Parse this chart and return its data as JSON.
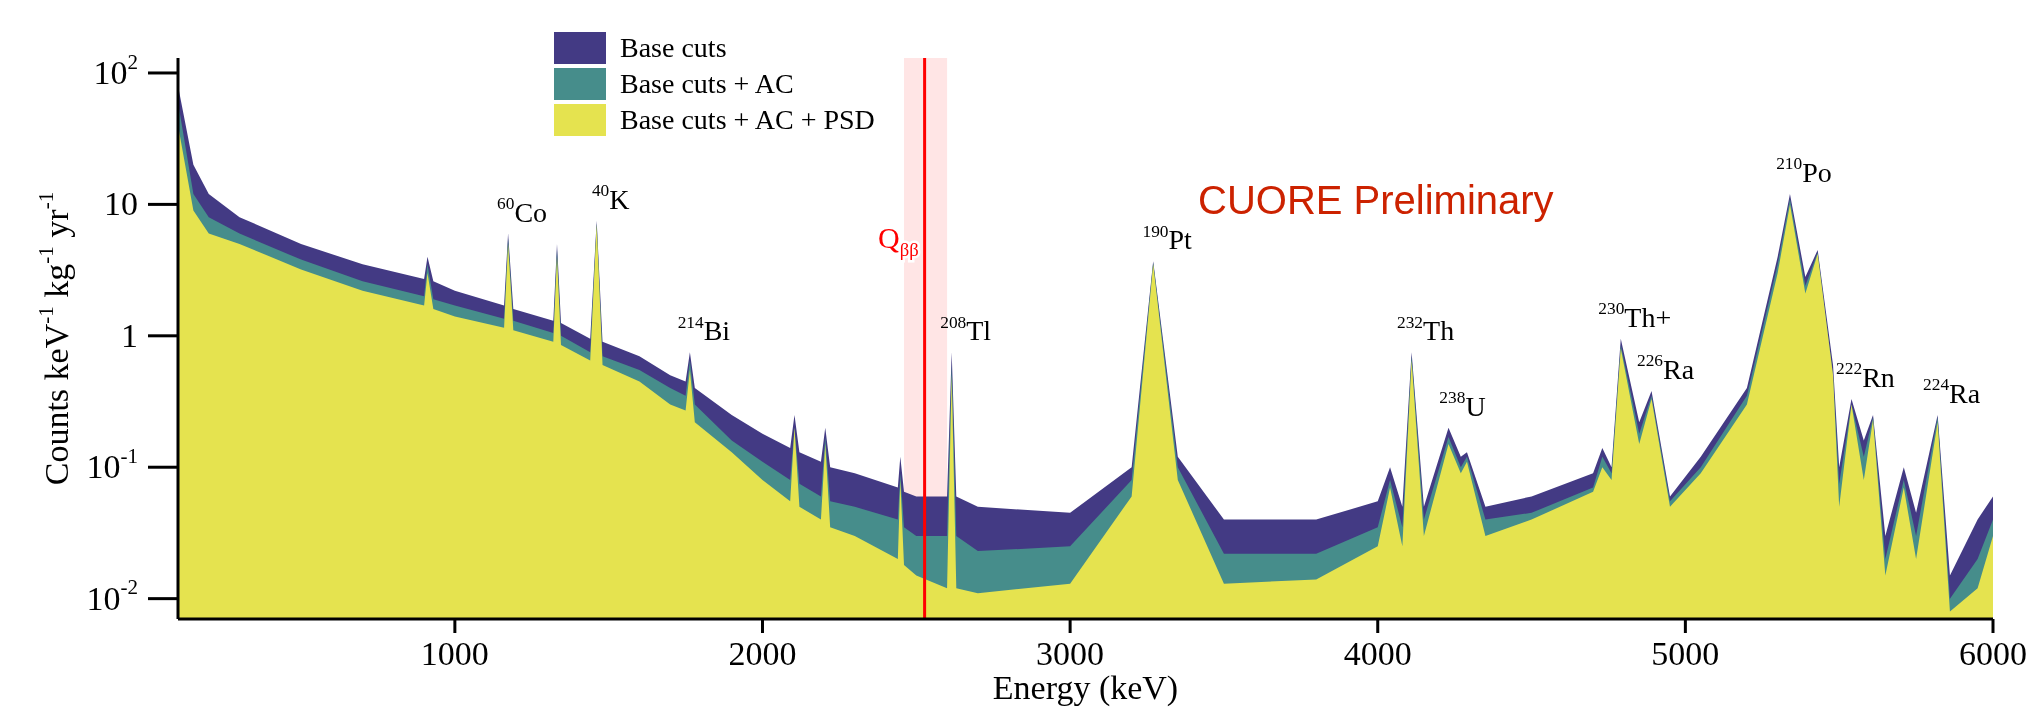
{
  "chart_data": {
    "type": "area",
    "xlabel": "Energy (keV)",
    "ylabel": "Counts keV$^{-1}$ kg$^{-1}$ yr$^{-1}$",
    "x": [
      100,
      150,
      200,
      300,
      500,
      700,
      900,
      911,
      930,
      1000,
      1160,
      1173,
      1190,
      1320,
      1332,
      1345,
      1440,
      1461,
      1480,
      1600,
      1700,
      1750,
      1764,
      1780,
      1900,
      2000,
      2090,
      2104,
      2120,
      2190,
      2204,
      2220,
      2300,
      2440,
      2448,
      2460,
      2500,
      2600,
      2615,
      2630,
      2700,
      3000,
      3200,
      3270,
      3350,
      3500,
      3800,
      4000,
      4040,
      4080,
      4110,
      4150,
      4230,
      4270,
      4290,
      4350,
      4500,
      4700,
      4730,
      4760,
      4790,
      4850,
      4890,
      4950,
      5050,
      5200,
      5300,
      5340,
      5390,
      5430,
      5480,
      5500,
      5540,
      5580,
      5610,
      5650,
      5710,
      5750,
      5820,
      5860,
      5950,
      6000
    ],
    "series": [
      {
        "name": "Base cuts",
        "color": "#433a84",
        "values": [
          80,
          20,
          12,
          8,
          5,
          3.5,
          2.7,
          4,
          2.6,
          2.2,
          1.7,
          6,
          1.6,
          1.3,
          5,
          1.25,
          0.95,
          7.5,
          0.9,
          0.7,
          0.5,
          0.45,
          0.75,
          0.4,
          0.25,
          0.18,
          0.14,
          0.25,
          0.13,
          0.11,
          0.2,
          0.1,
          0.09,
          0.07,
          0.12,
          0.065,
          0.06,
          0.06,
          0.75,
          0.06,
          0.05,
          0.045,
          0.1,
          3.7,
          0.12,
          0.04,
          0.04,
          0.055,
          0.1,
          0.05,
          0.75,
          0.05,
          0.2,
          0.12,
          0.13,
          0.05,
          0.06,
          0.09,
          0.14,
          0.1,
          0.95,
          0.22,
          0.38,
          0.06,
          0.12,
          0.4,
          4,
          12,
          2.8,
          4.5,
          0.6,
          0.1,
          0.33,
          0.16,
          0.25,
          0.03,
          0.1,
          0.045,
          0.25,
          0.015,
          0.04,
          0.06
        ]
      },
      {
        "name": "Base cuts + AC",
        "color": "#468d8b",
        "values": [
          60,
          12,
          8,
          6,
          3.8,
          2.6,
          2,
          3.5,
          1.9,
          1.7,
          1.35,
          5.5,
          1.3,
          1.05,
          4.5,
          1,
          0.75,
          7.2,
          0.7,
          0.55,
          0.4,
          0.35,
          0.65,
          0.3,
          0.16,
          0.11,
          0.08,
          0.2,
          0.075,
          0.06,
          0.17,
          0.055,
          0.05,
          0.04,
          0.09,
          0.035,
          0.03,
          0.03,
          0.6,
          0.03,
          0.023,
          0.025,
          0.08,
          3.6,
          0.1,
          0.022,
          0.022,
          0.035,
          0.08,
          0.035,
          0.7,
          0.04,
          0.17,
          0.1,
          0.12,
          0.04,
          0.045,
          0.07,
          0.12,
          0.09,
          0.85,
          0.18,
          0.35,
          0.055,
          0.1,
          0.35,
          3.5,
          11,
          2.4,
          4.3,
          0.5,
          0.075,
          0.3,
          0.12,
          0.24,
          0.02,
          0.08,
          0.03,
          0.24,
          0.01,
          0.02,
          0.04
        ]
      },
      {
        "name": "Base cuts + AC + PSD",
        "color": "#e5e34f",
        "values": [
          40,
          9,
          6,
          5,
          3.2,
          2.2,
          1.7,
          3,
          1.6,
          1.4,
          1.15,
          5,
          1.1,
          0.9,
          4,
          0.85,
          0.65,
          7,
          0.6,
          0.45,
          0.3,
          0.27,
          0.55,
          0.22,
          0.13,
          0.08,
          0.055,
          0.2,
          0.05,
          0.04,
          0.15,
          0.035,
          0.03,
          0.02,
          0.08,
          0.018,
          0.015,
          0.012,
          0.5,
          0.012,
          0.011,
          0.013,
          0.06,
          3.5,
          0.08,
          0.013,
          0.014,
          0.025,
          0.07,
          0.025,
          0.65,
          0.03,
          0.15,
          0.09,
          0.11,
          0.03,
          0.04,
          0.065,
          0.1,
          0.08,
          0.8,
          0.15,
          0.33,
          0.05,
          0.09,
          0.3,
          3,
          10,
          2.1,
          4.2,
          0.5,
          0.05,
          0.3,
          0.08,
          0.23,
          0.015,
          0.07,
          0.02,
          0.22,
          0.008,
          0.012,
          0.03
        ]
      }
    ],
    "log": "y",
    "xlim": [
      100,
      6000
    ],
    "ylim": [
      0.007,
      130
    ],
    "xticks": [
      1000,
      2000,
      3000,
      4000,
      5000,
      6000
    ],
    "yticks": [
      {
        "value": 0.01,
        "label": "10$^{-2}$"
      },
      {
        "value": 0.1,
        "label": "10$^{-1}$"
      },
      1,
      10,
      {
        "value": 100,
        "label": "10$^{2}$"
      }
    ],
    "legend": "top",
    "grid": false,
    "ref_lines": [
      {
        "axis": "x",
        "value": 2527,
        "label": "Q$_{ββ}$",
        "color": "#ff0000"
      }
    ],
    "bands": [
      {
        "axis": "x",
        "from": 2460,
        "to": 2600,
        "color": "#ff9999"
      }
    ],
    "annotations": [
      {
        "text": "$^{60}$Co",
        "x": 1173,
        "y": 6
      },
      {
        "text": "$^{40}$K",
        "x": 1461,
        "y": 7.5
      },
      {
        "text": "$^{214}$Bi",
        "x": 1764,
        "y": 0.75
      },
      {
        "text": "$^{208}$Tl",
        "x": 2615,
        "y": 0.75
      },
      {
        "text": "$^{190}$Pt",
        "x": 3270,
        "y": 3.7
      },
      {
        "text": "$^{232}$Th",
        "x": 4110,
        "y": 0.75
      },
      {
        "text": "$^{238}$U",
        "x": 4230,
        "y": 0.2
      },
      {
        "text": "$^{230}$Th+",
        "x": 4790,
        "y": 0.95
      },
      {
        "text": "$^{226}$Ra",
        "x": 4890,
        "y": 0.38
      },
      {
        "text": "$^{210}$Po",
        "x": 5340,
        "y": 12
      },
      {
        "text": "$^{222}$Rn",
        "x": 5540,
        "y": 0.33
      },
      {
        "text": "$^{224}$Ra",
        "x": 5820,
        "y": 0.25
      },
      "CUORE Preliminary"
    ]
  }
}
